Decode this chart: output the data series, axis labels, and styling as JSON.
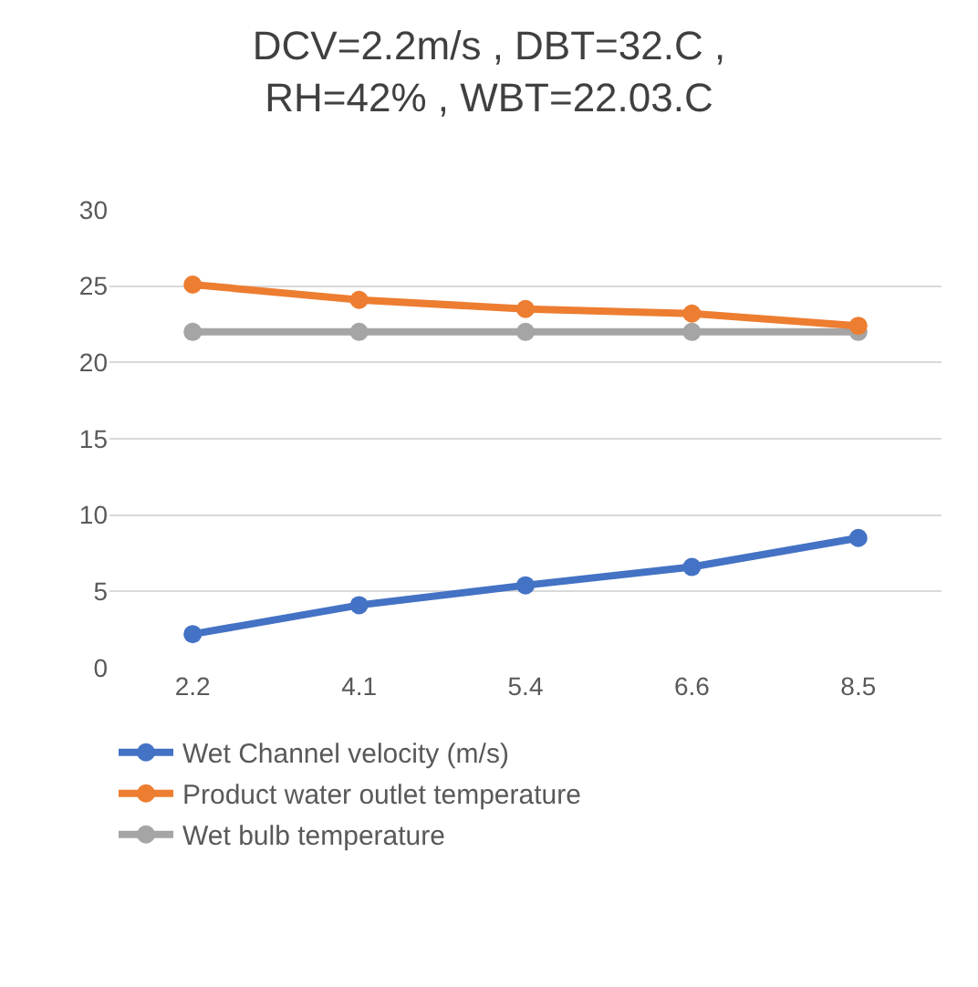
{
  "chart_data": {
    "type": "line",
    "title": "DCV=2.2m/s , DBT=32.C ,\nRH=42% , WBT=22.03.C",
    "categories": [
      "2.2",
      "4.1",
      "5.4",
      "6.6",
      "8.5"
    ],
    "series": [
      {
        "name": "Wet Channel velocity (m/s)",
        "color": "#4472c4",
        "values": [
          2.2,
          4.1,
          5.4,
          6.6,
          8.5
        ]
      },
      {
        "name": "Product water outlet temperature",
        "color": "#ed7d31",
        "values": [
          25.1,
          24.1,
          23.5,
          23.2,
          22.4
        ]
      },
      {
        "name": "Wet bulb temperature",
        "color": "#a5a5a5",
        "values": [
          22,
          22,
          22,
          22,
          22
        ]
      }
    ],
    "ylim": [
      0,
      30
    ],
    "yticks": [
      0,
      5,
      10,
      15,
      20,
      25,
      30
    ],
    "grid": "y",
    "legend": "bottom",
    "marker": "circle",
    "line_style": "solid"
  }
}
